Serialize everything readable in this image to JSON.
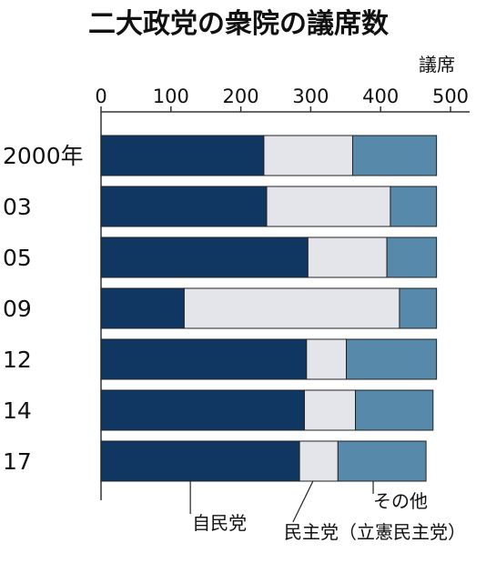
{
  "chart_data": {
    "type": "bar",
    "orientation": "horizontal",
    "stacked": true,
    "title": "二大政党の衆院の議席数",
    "unit_label": "議席",
    "xlim": [
      0,
      500
    ],
    "xticks": [
      0,
      100,
      200,
      300,
      400,
      500
    ],
    "categories": [
      "2000年",
      "03",
      "05",
      "09",
      "12",
      "14",
      "17"
    ],
    "series": [
      {
        "name": "自民党",
        "values": [
          233,
          237,
          296,
          119,
          294,
          291,
          284
        ]
      },
      {
        "name": "民主党（立憲民主党）",
        "values": [
          127,
          177,
          113,
          308,
          57,
          73,
          55
        ]
      },
      {
        "name": "その他",
        "values": [
          120,
          66,
          71,
          53,
          129,
          111,
          126
        ]
      }
    ],
    "colors": [
      "#0f3762",
      "#e4e5ea",
      "#5689aa"
    ],
    "grid": false,
    "legend_placement": "bottom"
  }
}
